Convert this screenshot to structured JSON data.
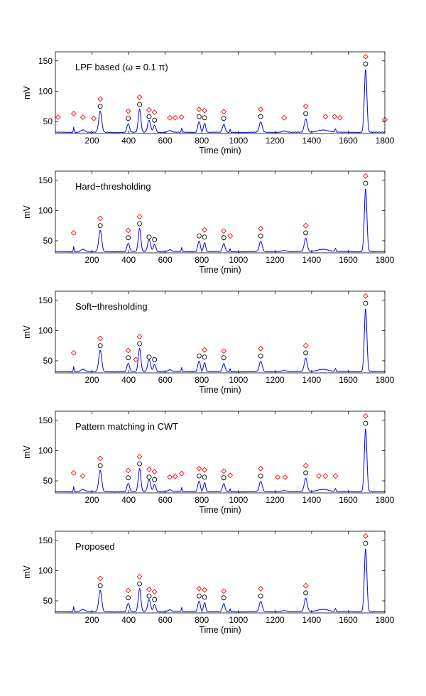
{
  "chart_data": [
    {
      "type": "line",
      "title": "LPF based (ω = 0.1 π)",
      "xlabel": "Time (min)",
      "ylabel": "mV",
      "xlim": [
        0,
        1800
      ],
      "ylim": [
        30,
        165
      ],
      "xticks": [
        200,
        400,
        600,
        800,
        1000,
        1200,
        1400,
        1600,
        1800
      ],
      "yticks": [
        50,
        100,
        150
      ],
      "grid": false,
      "detected_circles": [
        {
          "x": 245,
          "y": 75
        },
        {
          "x": 398,
          "y": 55
        },
        {
          "x": 460,
          "y": 78
        },
        {
          "x": 512,
          "y": 58
        },
        {
          "x": 542,
          "y": 52
        },
        {
          "x": 785,
          "y": 58
        },
        {
          "x": 815,
          "y": 56
        },
        {
          "x": 920,
          "y": 55
        },
        {
          "x": 1122,
          "y": 58
        },
        {
          "x": 1368,
          "y": 63
        },
        {
          "x": 1695,
          "y": 145
        }
      ],
      "detected_diamonds": [
        {
          "x": 15,
          "y": 57
        },
        {
          "x": 100,
          "y": 63
        },
        {
          "x": 150,
          "y": 57
        },
        {
          "x": 210,
          "y": 55
        },
        {
          "x": 245,
          "y": 87
        },
        {
          "x": 398,
          "y": 67
        },
        {
          "x": 460,
          "y": 90
        },
        {
          "x": 512,
          "y": 69
        },
        {
          "x": 542,
          "y": 65
        },
        {
          "x": 625,
          "y": 56
        },
        {
          "x": 655,
          "y": 56
        },
        {
          "x": 690,
          "y": 57
        },
        {
          "x": 785,
          "y": 70
        },
        {
          "x": 815,
          "y": 68
        },
        {
          "x": 920,
          "y": 66
        },
        {
          "x": 1122,
          "y": 70
        },
        {
          "x": 1250,
          "y": 56
        },
        {
          "x": 1368,
          "y": 75
        },
        {
          "x": 1475,
          "y": 58
        },
        {
          "x": 1525,
          "y": 58
        },
        {
          "x": 1555,
          "y": 56
        },
        {
          "x": 1695,
          "y": 157
        },
        {
          "x": 1800,
          "y": 53
        }
      ]
    },
    {
      "type": "line",
      "title": "Hard−thresholding",
      "xlabel": "Time (min)",
      "ylabel": "mV",
      "xlim": [
        0,
        1800
      ],
      "ylim": [
        30,
        165
      ],
      "xticks": [
        200,
        400,
        600,
        800,
        1000,
        1200,
        1400,
        1600,
        1800
      ],
      "yticks": [
        50,
        100,
        150
      ],
      "grid": false,
      "detected_circles": [
        {
          "x": 245,
          "y": 75
        },
        {
          "x": 398,
          "y": 55
        },
        {
          "x": 460,
          "y": 78
        },
        {
          "x": 512,
          "y": 56
        },
        {
          "x": 542,
          "y": 52
        },
        {
          "x": 785,
          "y": 58
        },
        {
          "x": 815,
          "y": 56
        },
        {
          "x": 920,
          "y": 55
        },
        {
          "x": 1122,
          "y": 58
        },
        {
          "x": 1368,
          "y": 63
        },
        {
          "x": 1695,
          "y": 145
        }
      ],
      "detected_diamonds": [
        {
          "x": 100,
          "y": 63
        },
        {
          "x": 245,
          "y": 87
        },
        {
          "x": 398,
          "y": 67
        },
        {
          "x": 460,
          "y": 90
        },
        {
          "x": 815,
          "y": 68
        },
        {
          "x": 920,
          "y": 66
        },
        {
          "x": 955,
          "y": 58
        },
        {
          "x": 1122,
          "y": 70
        },
        {
          "x": 1368,
          "y": 75
        },
        {
          "x": 1695,
          "y": 157
        }
      ]
    },
    {
      "type": "line",
      "title": "Soft−thresholding",
      "xlabel": "Time (min)",
      "ylabel": "mV",
      "xlim": [
        0,
        1800
      ],
      "ylim": [
        30,
        165
      ],
      "xticks": [
        200,
        400,
        600,
        800,
        1000,
        1200,
        1400,
        1600,
        1800
      ],
      "yticks": [
        50,
        100,
        150
      ],
      "grid": false,
      "detected_circles": [
        {
          "x": 245,
          "y": 75
        },
        {
          "x": 398,
          "y": 55
        },
        {
          "x": 460,
          "y": 78
        },
        {
          "x": 512,
          "y": 56
        },
        {
          "x": 542,
          "y": 52
        },
        {
          "x": 785,
          "y": 58
        },
        {
          "x": 815,
          "y": 56
        },
        {
          "x": 920,
          "y": 55
        },
        {
          "x": 1122,
          "y": 58
        },
        {
          "x": 1368,
          "y": 63
        },
        {
          "x": 1695,
          "y": 145
        }
      ],
      "detected_diamonds": [
        {
          "x": 100,
          "y": 63
        },
        {
          "x": 245,
          "y": 87
        },
        {
          "x": 398,
          "y": 67
        },
        {
          "x": 440,
          "y": 52
        },
        {
          "x": 460,
          "y": 90
        },
        {
          "x": 815,
          "y": 68
        },
        {
          "x": 920,
          "y": 66
        },
        {
          "x": 1122,
          "y": 70
        },
        {
          "x": 1368,
          "y": 75
        },
        {
          "x": 1695,
          "y": 157
        }
      ]
    },
    {
      "type": "line",
      "title": "Pattern matching in CWT",
      "xlabel": "Time (min)",
      "ylabel": "mV",
      "xlim": [
        0,
        1800
      ],
      "ylim": [
        30,
        165
      ],
      "xticks": [
        200,
        400,
        600,
        800,
        1000,
        1200,
        1400,
        1600,
        1800
      ],
      "yticks": [
        50,
        100,
        150
      ],
      "grid": false,
      "detected_circles": [
        {
          "x": 245,
          "y": 75
        },
        {
          "x": 398,
          "y": 55
        },
        {
          "x": 460,
          "y": 78
        },
        {
          "x": 512,
          "y": 56
        },
        {
          "x": 542,
          "y": 52
        },
        {
          "x": 785,
          "y": 58
        },
        {
          "x": 815,
          "y": 56
        },
        {
          "x": 920,
          "y": 55
        },
        {
          "x": 1122,
          "y": 58
        },
        {
          "x": 1368,
          "y": 63
        },
        {
          "x": 1695,
          "y": 145
        }
      ],
      "detected_diamonds": [
        {
          "x": 100,
          "y": 63
        },
        {
          "x": 150,
          "y": 58
        },
        {
          "x": 245,
          "y": 87
        },
        {
          "x": 398,
          "y": 67
        },
        {
          "x": 460,
          "y": 90
        },
        {
          "x": 512,
          "y": 69
        },
        {
          "x": 542,
          "y": 65
        },
        {
          "x": 625,
          "y": 56
        },
        {
          "x": 655,
          "y": 57
        },
        {
          "x": 690,
          "y": 62
        },
        {
          "x": 785,
          "y": 70
        },
        {
          "x": 815,
          "y": 68
        },
        {
          "x": 920,
          "y": 66
        },
        {
          "x": 955,
          "y": 59
        },
        {
          "x": 1122,
          "y": 70
        },
        {
          "x": 1215,
          "y": 56
        },
        {
          "x": 1255,
          "y": 56
        },
        {
          "x": 1368,
          "y": 75
        },
        {
          "x": 1440,
          "y": 58
        },
        {
          "x": 1475,
          "y": 58
        },
        {
          "x": 1530,
          "y": 58
        },
        {
          "x": 1695,
          "y": 157
        }
      ]
    },
    {
      "type": "line",
      "title": "Proposed",
      "xlabel": "Time (min)",
      "ylabel": "mV",
      "xlim": [
        0,
        1800
      ],
      "ylim": [
        30,
        165
      ],
      "xticks": [
        200,
        400,
        600,
        800,
        1000,
        1200,
        1400,
        1600,
        1800
      ],
      "yticks": [
        50,
        100,
        150
      ],
      "grid": false,
      "detected_circles": [
        {
          "x": 245,
          "y": 75
        },
        {
          "x": 398,
          "y": 55
        },
        {
          "x": 460,
          "y": 78
        },
        {
          "x": 512,
          "y": 58
        },
        {
          "x": 542,
          "y": 52
        },
        {
          "x": 785,
          "y": 58
        },
        {
          "x": 815,
          "y": 56
        },
        {
          "x": 920,
          "y": 55
        },
        {
          "x": 1122,
          "y": 58
        },
        {
          "x": 1368,
          "y": 63
        },
        {
          "x": 1695,
          "y": 145
        }
      ],
      "detected_diamonds": [
        {
          "x": 245,
          "y": 87
        },
        {
          "x": 398,
          "y": 67
        },
        {
          "x": 460,
          "y": 90
        },
        {
          "x": 512,
          "y": 69
        },
        {
          "x": 542,
          "y": 65
        },
        {
          "x": 785,
          "y": 70
        },
        {
          "x": 815,
          "y": 68
        },
        {
          "x": 920,
          "y": 66
        },
        {
          "x": 1122,
          "y": 70
        },
        {
          "x": 1368,
          "y": 75
        },
        {
          "x": 1695,
          "y": 157
        }
      ]
    }
  ],
  "signal": {
    "baseline": 32,
    "peaks": [
      {
        "t": 100,
        "h": 9,
        "w": 2
      },
      {
        "t": 150,
        "h": 4,
        "w": 12
      },
      {
        "t": 245,
        "h": 35,
        "w": 8
      },
      {
        "t": 398,
        "h": 14,
        "w": 7
      },
      {
        "t": 460,
        "h": 38,
        "w": 7
      },
      {
        "t": 512,
        "h": 20,
        "w": 8
      },
      {
        "t": 542,
        "h": 12,
        "w": 7
      },
      {
        "t": 625,
        "h": 3,
        "w": 10
      },
      {
        "t": 690,
        "h": 7,
        "w": 2
      },
      {
        "t": 785,
        "h": 18,
        "w": 7
      },
      {
        "t": 815,
        "h": 15,
        "w": 6
      },
      {
        "t": 920,
        "h": 13,
        "w": 7
      },
      {
        "t": 955,
        "h": 5,
        "w": 2
      },
      {
        "t": 1122,
        "h": 17,
        "w": 8
      },
      {
        "t": 1250,
        "h": 2,
        "w": 14
      },
      {
        "t": 1368,
        "h": 22,
        "w": 8
      },
      {
        "t": 1460,
        "h": 4,
        "w": 30
      },
      {
        "t": 1530,
        "h": 5,
        "w": 3
      },
      {
        "t": 1695,
        "h": 104,
        "w": 7
      }
    ]
  },
  "colors": {
    "signal": "#0000ff",
    "circle": "#000000",
    "diamond": "#ff0000",
    "axes": "#000000"
  }
}
